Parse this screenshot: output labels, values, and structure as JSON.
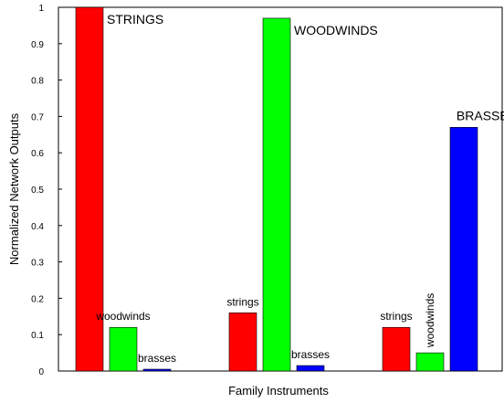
{
  "chart_data": {
    "type": "bar",
    "xlabel": "Family Instruments",
    "ylabel": "Normalized Network Outputs",
    "ylim": [
      0,
      1
    ],
    "yticks": [
      "0",
      "0.1",
      "0.2",
      "0.3",
      "0.4",
      "0.5",
      "0.6",
      "0.7",
      "0.8",
      "0.9",
      "1"
    ],
    "grid": false,
    "colors": {
      "strings": "#ff0000",
      "woodwinds": "#00ff00",
      "brasses": "#0000ff"
    },
    "groups": [
      {
        "bars": [
          {
            "series": "strings",
            "value": 1.0,
            "label": "STRINGS"
          },
          {
            "series": "woodwinds",
            "value": 0.12,
            "label": "woodwinds"
          },
          {
            "series": "brasses",
            "value": 0.005,
            "label": "brasses"
          }
        ]
      },
      {
        "bars": [
          {
            "series": "strings",
            "value": 0.16,
            "label": "strings"
          },
          {
            "series": "woodwinds",
            "value": 0.97,
            "label": "WOODWINDS"
          },
          {
            "series": "brasses",
            "value": 0.015,
            "label": "brasses"
          }
        ]
      },
      {
        "bars": [
          {
            "series": "strings",
            "value": 0.12,
            "label": "strings"
          },
          {
            "series": "woodwinds",
            "value": 0.05,
            "label": "woodwinds"
          },
          {
            "series": "brasses",
            "value": 0.67,
            "label": "BRASSES"
          }
        ]
      }
    ]
  }
}
